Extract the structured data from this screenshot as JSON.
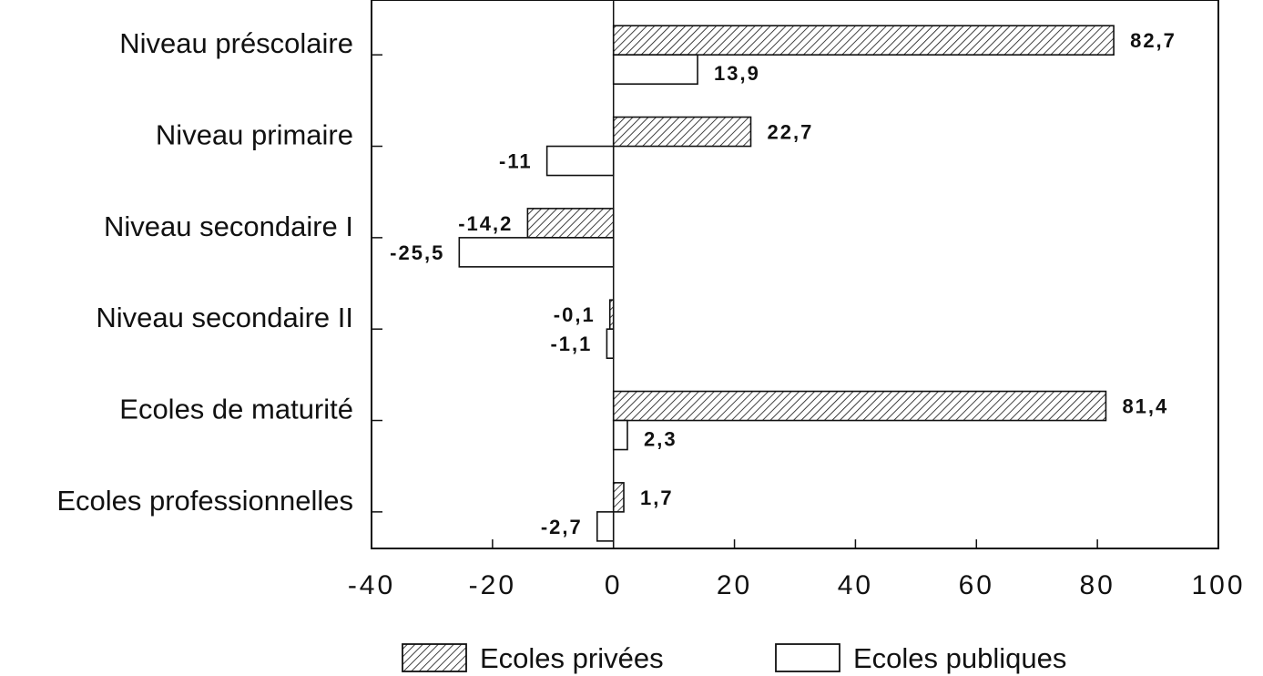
{
  "chart_data": {
    "type": "bar",
    "orientation": "horizontal",
    "title": "",
    "xlabel": "",
    "ylabel": "",
    "xlim": [
      -40,
      100
    ],
    "x_ticks": [
      -40,
      -20,
      0,
      20,
      40,
      60,
      80,
      100
    ],
    "x_tick_labels": [
      "-40",
      "-20",
      "0",
      "20",
      "40",
      "60",
      "80",
      "100"
    ],
    "grid": false,
    "legend_position": "bottom",
    "categories": [
      "Niveau préscolaire",
      "Niveau primaire",
      "Niveau secondaire I",
      "Niveau secondaire II",
      "Ecoles de maturité",
      "Ecoles professionnelles"
    ],
    "series": [
      {
        "name": "Ecoles privées",
        "pattern": "hatched",
        "values": [
          82.7,
          22.7,
          -14.2,
          -0.1,
          81.4,
          1.7
        ],
        "labels": [
          "82,7",
          "22,7",
          "-14,2",
          "-0,1",
          "81,4",
          "1,7"
        ]
      },
      {
        "name": "Ecoles publiques",
        "pattern": "empty",
        "values": [
          13.9,
          -11,
          -25.5,
          -1.1,
          2.3,
          -2.7
        ],
        "labels": [
          "13,9",
          "-11",
          "-25,5",
          "-1,1",
          "2,3",
          "-2,7"
        ]
      }
    ]
  },
  "colors": {
    "ink": "#111111",
    "background": "#ffffff"
  }
}
